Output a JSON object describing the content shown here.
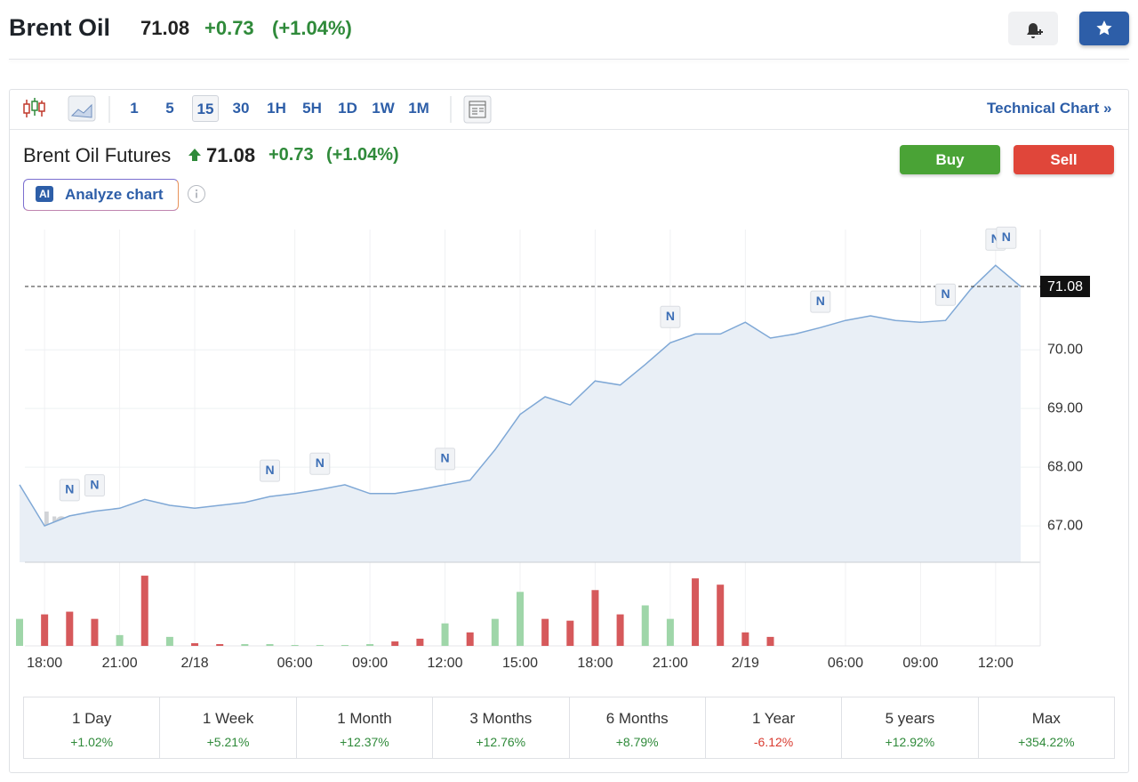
{
  "header": {
    "title": "Brent Oil",
    "price": "71.08",
    "change": "+0.73",
    "change_pct": "(+1.04%)"
  },
  "toolbar": {
    "intervals": [
      "1",
      "5",
      "15",
      "30",
      "1H",
      "5H",
      "1D",
      "1W",
      "1M"
    ],
    "active": "15",
    "technical_link": "Technical Chart »"
  },
  "quote": {
    "name": "Brent Oil Futures",
    "price": "71.08",
    "change": "+0.73",
    "change_pct": "(+1.04%)",
    "buy": "Buy",
    "sell": "Sell",
    "ai_badge": "AI",
    "analyze": "Analyze chart"
  },
  "chart_data": {
    "type": "area",
    "categories": [
      null,
      "18:00",
      null,
      null,
      "21:00",
      null,
      null,
      "2/18",
      null,
      null,
      null,
      "06:00",
      null,
      null,
      "09:00",
      null,
      null,
      "12:00",
      null,
      null,
      "15:00",
      null,
      null,
      "18:00",
      null,
      null,
      "21:00",
      null,
      null,
      "2/19",
      null,
      null,
      null,
      "06:00",
      null,
      null,
      "09:00",
      null,
      null,
      "12:00",
      null
    ],
    "values": [
      67.7,
      67.0,
      67.17,
      67.25,
      67.3,
      67.45,
      67.35,
      67.3,
      67.35,
      67.4,
      67.5,
      67.55,
      67.62,
      67.7,
      67.55,
      67.55,
      67.62,
      67.7,
      67.78,
      68.3,
      68.9,
      69.2,
      69.06,
      69.47,
      69.4,
      69.75,
      70.12,
      70.27,
      70.27,
      70.47,
      70.2,
      70.27,
      70.38,
      70.5,
      70.58,
      70.5,
      70.47,
      70.5,
      71.03,
      71.44,
      71.08
    ],
    "color": "#7fa8d6",
    "fill": "#e9eff6",
    "ylim": [
      66.38,
      72.05
    ],
    "yticks": [
      {
        "value": 67,
        "label": "67.00"
      },
      {
        "value": 68,
        "label": "68.00"
      },
      {
        "value": 69,
        "label": "69.00"
      },
      {
        "value": 70,
        "label": "70.00"
      }
    ],
    "grid": true,
    "last_price": {
      "value": 71.08,
      "label": "71.08"
    },
    "watermark": "Investing.com",
    "annotations": [
      {
        "label": "N",
        "index": 2
      },
      {
        "label": "N",
        "index": 3
      },
      {
        "label": "N",
        "index": 10
      },
      {
        "label": "N",
        "index": 12
      },
      {
        "label": "N",
        "index": 17
      },
      {
        "label": "N",
        "index": 26
      },
      {
        "label": "N",
        "index": 32
      },
      {
        "label": "N",
        "index": 37
      },
      {
        "label": "N",
        "index": 39
      },
      {
        "label": "N",
        "index": 39
      }
    ],
    "volume": {
      "ylim": [
        0,
        85
      ],
      "values": [
        30,
        35,
        38,
        30,
        12,
        78,
        10,
        3,
        2,
        2,
        2,
        1,
        1,
        1,
        2,
        5,
        8,
        25,
        15,
        30,
        60,
        30,
        28,
        62,
        35,
        45,
        30,
        75,
        68,
        15,
        10,
        0,
        0,
        0,
        0,
        0,
        0,
        0,
        0,
        0,
        0
      ],
      "colors": [
        "#9fd6a9",
        "#d6595b",
        "#d6595b",
        "#d6595b",
        "#9fd6a9",
        "#d6595b",
        "#9fd6a9",
        "#d6595b",
        "#d6595b",
        "#9fd6a9",
        "#9fd6a9",
        "#9fd6a9",
        "#9fd6a9",
        "#9fd6a9",
        "#9fd6a9",
        "#d6595b",
        "#d6595b",
        "#9fd6a9",
        "#d6595b",
        "#9fd6a9",
        "#9fd6a9",
        "#d6595b",
        "#d6595b",
        "#d6595b",
        "#d6595b",
        "#9fd6a9",
        "#9fd6a9",
        "#d6595b",
        "#d6595b",
        "#d6595b",
        "#d6595b",
        "#9fd6a9",
        "#9fd6a9",
        "#9fd6a9",
        "#9fd6a9",
        "#9fd6a9",
        "#9fd6a9",
        "#9fd6a9",
        "#9fd6a9",
        "#9fd6a9",
        "#9fd6a9"
      ]
    }
  },
  "performance": [
    {
      "period": "1 Day",
      "change": "+1.02%"
    },
    {
      "period": "1 Week",
      "change": "+5.21%"
    },
    {
      "period": "1 Month",
      "change": "+12.37%"
    },
    {
      "period": "3 Months",
      "change": "+12.76%"
    },
    {
      "period": "6 Months",
      "change": "+8.79%"
    },
    {
      "period": "1 Year",
      "change": "-6.12%"
    },
    {
      "period": "5 years",
      "change": "+12.92%"
    },
    {
      "period": "Max",
      "change": "+354.22%"
    }
  ]
}
